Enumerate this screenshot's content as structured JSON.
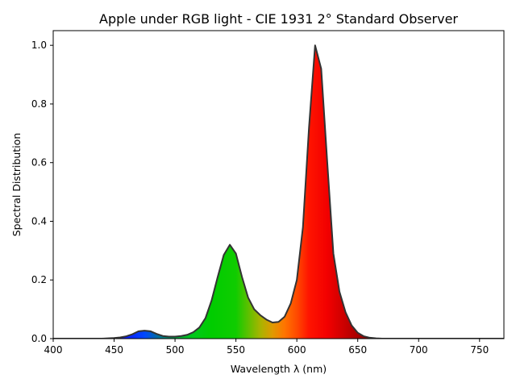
{
  "chart_data": {
    "type": "area",
    "title": "Apple under RGB light - CIE 1931 2$^\\circ$ Standard Observer",
    "title_display": "Apple under RGB light - CIE 1931 2° Standard Observer",
    "xlabel": "Wavelength λ (nm)",
    "ylabel": "Spectral Distribution",
    "xlim": [
      400,
      770
    ],
    "ylim": [
      0,
      1.05
    ],
    "xticks": [
      400,
      450,
      500,
      550,
      600,
      650,
      700,
      750
    ],
    "xtick_labels": [
      "400",
      "450",
      "500",
      "550",
      "600",
      "650",
      "700",
      "750"
    ],
    "yticks": [
      0.0,
      0.2,
      0.4,
      0.6,
      0.8,
      1.0
    ],
    "ytick_labels": [
      "0.0",
      "0.2",
      "0.4",
      "0.6",
      "0.8",
      "1.0"
    ],
    "grid": false,
    "fill": "spectral colors by wavelength",
    "line_color": "#333333",
    "x": [
      400,
      405,
      410,
      415,
      420,
      425,
      430,
      435,
      440,
      445,
      450,
      455,
      460,
      465,
      470,
      475,
      480,
      485,
      490,
      495,
      500,
      505,
      510,
      515,
      520,
      525,
      530,
      535,
      540,
      545,
      550,
      555,
      560,
      565,
      570,
      575,
      580,
      585,
      590,
      595,
      600,
      605,
      610,
      615,
      620,
      625,
      630,
      635,
      640,
      645,
      650,
      655,
      660,
      665,
      670,
      675,
      680,
      690,
      700,
      720,
      740,
      760,
      770
    ],
    "values": [
      0,
      0,
      0,
      0,
      0,
      0,
      0,
      0,
      0,
      0.001,
      0.002,
      0.004,
      0.008,
      0.015,
      0.025,
      0.027,
      0.025,
      0.016,
      0.009,
      0.007,
      0.007,
      0.009,
      0.013,
      0.022,
      0.038,
      0.07,
      0.13,
      0.21,
      0.285,
      0.32,
      0.29,
      0.21,
      0.14,
      0.1,
      0.08,
      0.065,
      0.055,
      0.057,
      0.075,
      0.12,
      0.2,
      0.38,
      0.72,
      1.0,
      0.92,
      0.6,
      0.29,
      0.16,
      0.09,
      0.045,
      0.02,
      0.008,
      0.003,
      0.001,
      0,
      0,
      0,
      0,
      0,
      0,
      0,
      0,
      0
    ]
  }
}
